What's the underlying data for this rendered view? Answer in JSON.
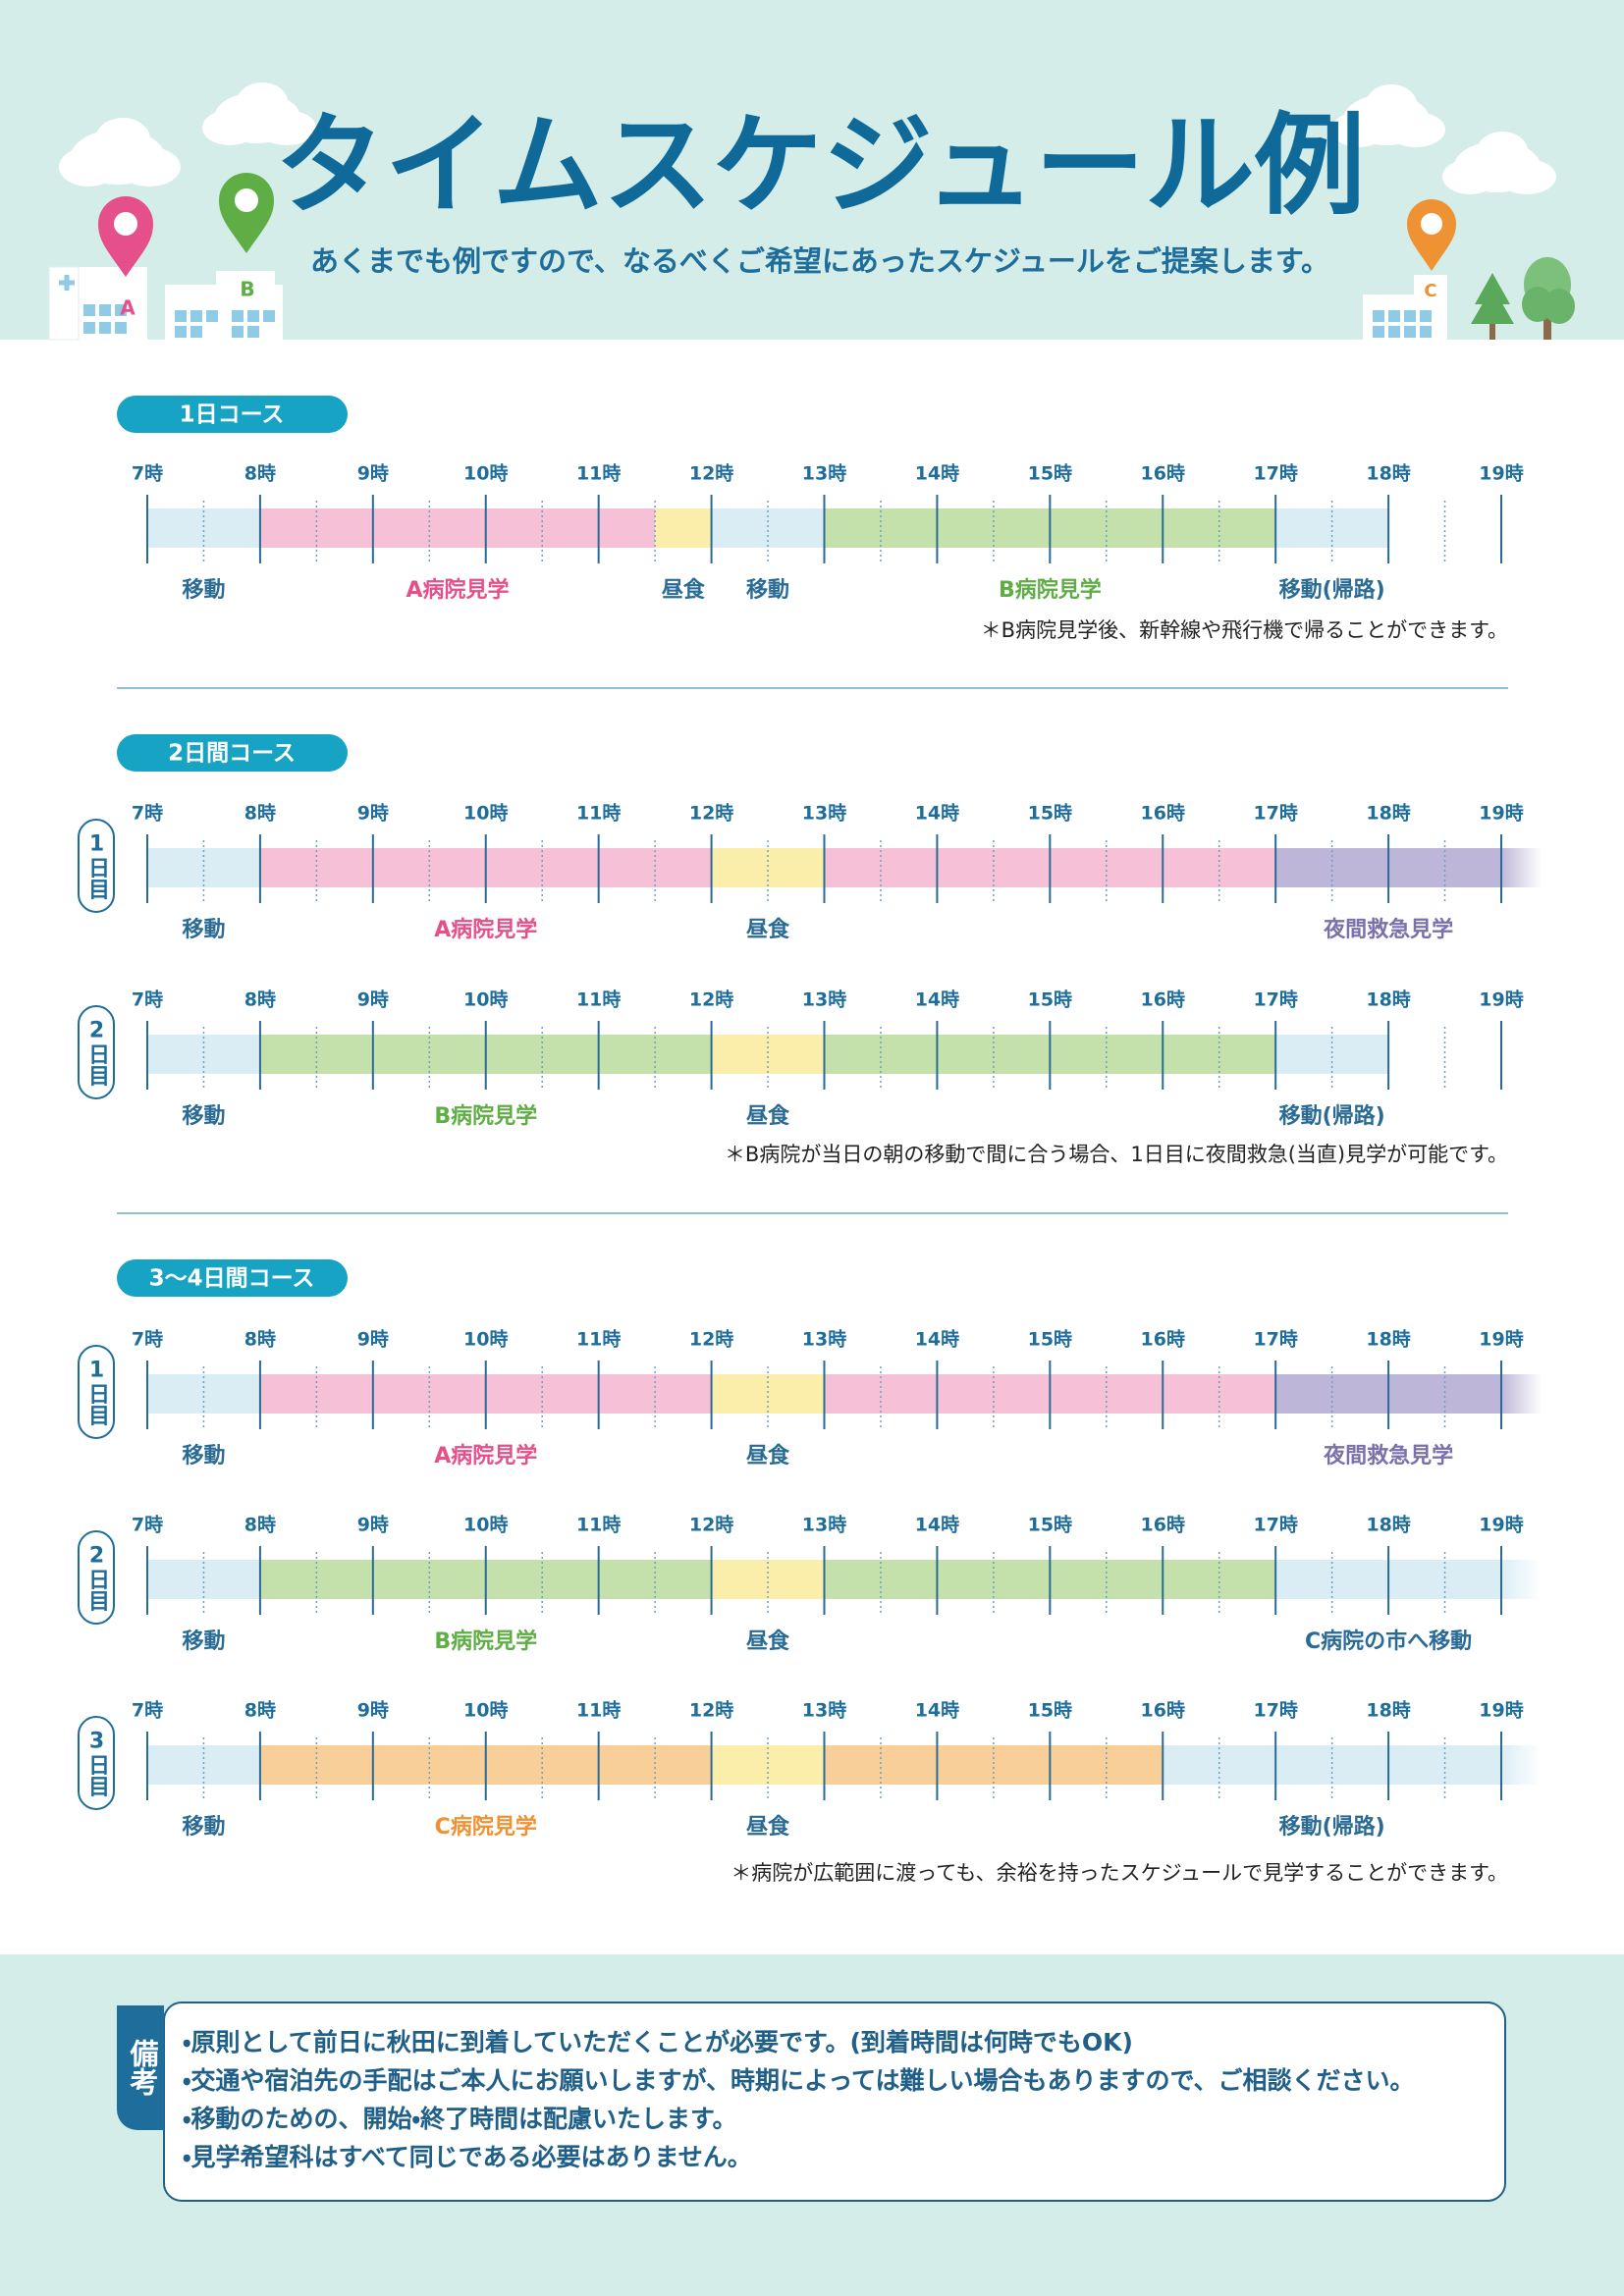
{
  "header": {
    "title": "タイムスケジュール例",
    "subtitle": "あくまでも例ですので、なるべくご希望にあったスケジュールをご提案します。",
    "markers": [
      "A",
      "B",
      "C"
    ]
  },
  "timeline": {
    "hours": [
      {
        "value": 7,
        "label": "7時"
      },
      {
        "value": 8,
        "label": "8時"
      },
      {
        "value": 9,
        "label": "9時"
      },
      {
        "value": 10,
        "label": "10時"
      },
      {
        "value": 11,
        "label": "11時"
      },
      {
        "value": 12,
        "label": "12時"
      },
      {
        "value": 13,
        "label": "13時"
      },
      {
        "value": 14,
        "label": "14時"
      },
      {
        "value": 15,
        "label": "15時"
      },
      {
        "value": 16,
        "label": "16時"
      },
      {
        "value": 17,
        "label": "17時"
      },
      {
        "value": 18,
        "label": "18時"
      },
      {
        "value": 19,
        "label": "19時"
      }
    ]
  },
  "courses": [
    {
      "name": "1日コース",
      "days": [
        {
          "segments": [
            {
              "start": 7,
              "end": 8,
              "color": "#dbedf4",
              "label": "移動",
              "label_color": "#2a6b95"
            },
            {
              "start": 8,
              "end": 11.5,
              "color": "#f6c0d6",
              "label": "A病院見学",
              "label_color": "#e5508a"
            },
            {
              "start": 11.5,
              "end": 12,
              "color": "#fbeeaa",
              "label": "昼食",
              "label_color": "#2a6b95"
            },
            {
              "start": 12,
              "end": 13,
              "color": "#dbedf4",
              "label": "移動",
              "label_color": "#2a6b95"
            },
            {
              "start": 13,
              "end": 17,
              "color": "#c4e1ab",
              "label": "B病院見学",
              "label_color": "#5fae45"
            },
            {
              "start": 17,
              "end": 18,
              "color": "#dbedf4",
              "label": "移動(帰路)",
              "label_color": "#2a6b95"
            }
          ]
        }
      ],
      "note": "＊B病院見学後、新幹線や飛行機で帰ることができます。"
    },
    {
      "name": "2日間コース",
      "days": [
        {
          "day": "1日目",
          "segments": [
            {
              "start": 7,
              "end": 8,
              "color": "#dbedf4",
              "label": "移動",
              "label_color": "#2a6b95"
            },
            {
              "start": 8,
              "end": 12,
              "color": "#f6c0d6",
              "label": "A病院見学",
              "label_color": "#e5508a"
            },
            {
              "start": 12,
              "end": 13,
              "color": "#fbeeaa",
              "label": "昼食",
              "label_color": "#2a6b95"
            },
            {
              "start": 13,
              "end": 17,
              "color": "#f6c0d6"
            },
            {
              "start": 17,
              "end": 19,
              "color": "#bdb6d8",
              "label": "夜間救急見学",
              "label_color": "#7b6fac"
            }
          ]
        },
        {
          "day": "2日目",
          "segments": [
            {
              "start": 7,
              "end": 8,
              "color": "#dbedf4",
              "label": "移動",
              "label_color": "#2a6b95"
            },
            {
              "start": 8,
              "end": 12,
              "color": "#c4e1ab",
              "label": "B病院見学",
              "label_color": "#5fae45"
            },
            {
              "start": 12,
              "end": 13,
              "color": "#fbeeaa",
              "label": "昼食",
              "label_color": "#2a6b95"
            },
            {
              "start": 13,
              "end": 17,
              "color": "#c4e1ab"
            },
            {
              "start": 17,
              "end": 18,
              "color": "#dbedf4",
              "label": "移動(帰路)",
              "label_color": "#2a6b95"
            }
          ]
        }
      ],
      "note": "＊B病院が当日の朝の移動で間に合う場合、1日目に夜間救急(当直)見学が可能です。"
    },
    {
      "name": "3〜4日間コース",
      "days": [
        {
          "day": "1日目",
          "segments": [
            {
              "start": 7,
              "end": 8,
              "color": "#dbedf4",
              "label": "移動",
              "label_color": "#2a6b95"
            },
            {
              "start": 8,
              "end": 12,
              "color": "#f6c0d6",
              "label": "A病院見学",
              "label_color": "#e5508a"
            },
            {
              "start": 12,
              "end": 13,
              "color": "#fbeeaa",
              "label": "昼食",
              "label_color": "#2a6b95"
            },
            {
              "start": 13,
              "end": 17,
              "color": "#f6c0d6"
            },
            {
              "start": 17,
              "end": 19,
              "color": "#bdb6d8",
              "label": "夜間救急見学",
              "label_color": "#7b6fac"
            }
          ]
        },
        {
          "day": "2日目",
          "segments": [
            {
              "start": 7,
              "end": 8,
              "color": "#dbedf4",
              "label": "移動",
              "label_color": "#2a6b95"
            },
            {
              "start": 8,
              "end": 12,
              "color": "#c4e1ab",
              "label": "B病院見学",
              "label_color": "#5fae45"
            },
            {
              "start": 12,
              "end": 13,
              "color": "#fbeeaa",
              "label": "昼食",
              "label_color": "#2a6b95"
            },
            {
              "start": 13,
              "end": 17,
              "color": "#c4e1ab"
            },
            {
              "start": 17,
              "end": 19,
              "color": "#dbedf4",
              "label": "C病院の市へ移動",
              "label_color": "#2a6b95"
            }
          ]
        },
        {
          "day": "3日目",
          "segments": [
            {
              "start": 7,
              "end": 8,
              "color": "#dbedf4",
              "label": "移動",
              "label_color": "#2a6b95"
            },
            {
              "start": 8,
              "end": 12,
              "color": "#f8cf98",
              "label": "C病院見学",
              "label_color": "#ef9233"
            },
            {
              "start": 12,
              "end": 13,
              "color": "#fbeeaa",
              "label": "昼食",
              "label_color": "#2a6b95"
            },
            {
              "start": 13,
              "end": 16,
              "color": "#f8cf98"
            },
            {
              "start": 16,
              "end": 19,
              "color": "#dbedf4",
              "label": "移動(帰路)",
              "label_color": "#2a6b95"
            }
          ]
        }
      ],
      "note": "＊病院が広範囲に渡っても、余裕を持ったスケジュールで見学することができます。"
    }
  ],
  "remarks": {
    "label": "備考",
    "items": [
      "・原則として前日に秋田に到着していただくことが必要です。(到着時間は何時でもOK)",
      "・交通や宿泊先の手配はご本人にお願いしますが、時期によっては難しい場合もありますので、ご相談ください。",
      "・移動のための、開始・終了時間は配慮いたします。",
      "・見学希望科はすべて同じである必要はありません。"
    ]
  }
}
